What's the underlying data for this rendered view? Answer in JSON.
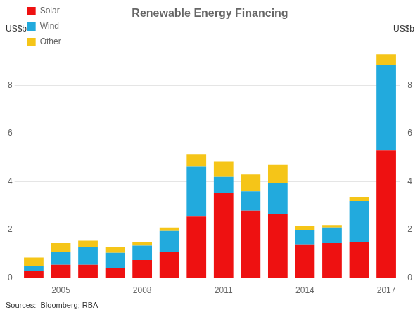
{
  "chart_data": {
    "type": "bar",
    "title": "Renewable Energy Financing",
    "ylabel": "US$b",
    "y2label": "US$b",
    "source": "Sources:  Bloomberg; RBA",
    "categories": [
      null,
      "2005",
      null,
      null,
      "2008",
      null,
      null,
      "2011",
      null,
      null,
      "2014",
      null,
      null,
      "2017"
    ],
    "series": [
      {
        "name": "Solar",
        "color": "#EE1111",
        "values": [
          0.3,
          0.55,
          0.55,
          0.4,
          0.75,
          1.1,
          2.55,
          3.55,
          2.8,
          2.65,
          1.4,
          1.45,
          1.5,
          5.3
        ]
      },
      {
        "name": "Wind",
        "color": "#22AADD",
        "values": [
          0.2,
          0.55,
          0.75,
          0.65,
          0.6,
          0.85,
          2.1,
          0.65,
          0.8,
          1.3,
          0.6,
          0.65,
          1.7,
          3.55
        ]
      },
      {
        "name": "Other",
        "color": "#F5C518",
        "values": [
          0.35,
          0.35,
          0.25,
          0.25,
          0.15,
          0.15,
          0.5,
          0.65,
          0.7,
          0.75,
          0.15,
          0.1,
          0.15,
          0.45
        ]
      }
    ],
    "stacked": true,
    "ylim": [
      0,
      10
    ],
    "yticks": [
      0,
      2,
      4,
      6,
      8
    ],
    "y2lim": [
      0,
      10
    ],
    "y2ticks": [
      0,
      2,
      4,
      6,
      8
    ],
    "grid": true,
    "legend": "upper left"
  }
}
